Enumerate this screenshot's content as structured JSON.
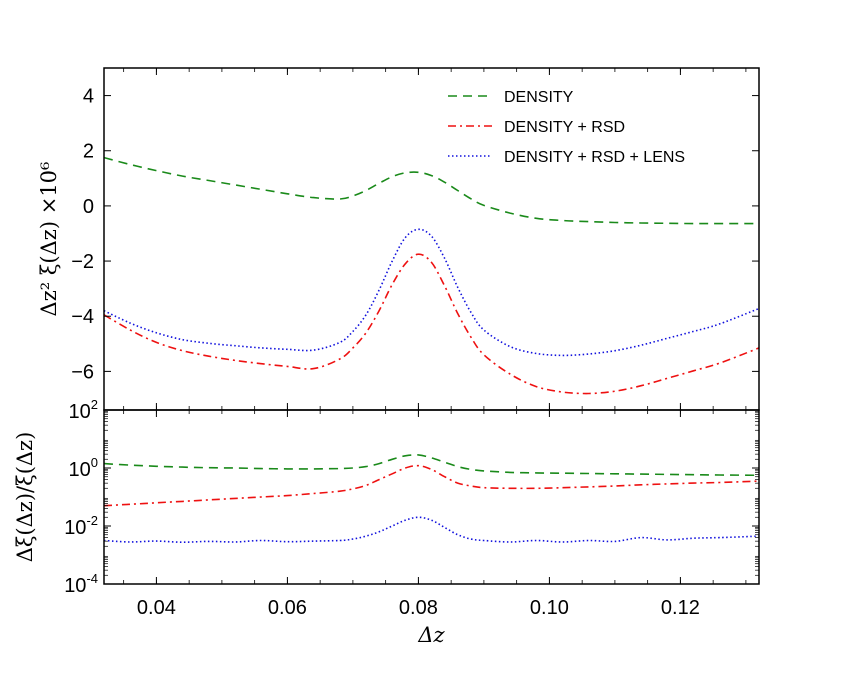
{
  "chart_data": {
    "type": "line",
    "x": [
      0.032,
      0.036,
      0.04,
      0.044,
      0.048,
      0.052,
      0.056,
      0.06,
      0.064,
      0.068,
      0.07,
      0.072,
      0.074,
      0.076,
      0.078,
      0.08,
      0.082,
      0.084,
      0.086,
      0.088,
      0.09,
      0.094,
      0.098,
      0.102,
      0.106,
      0.11,
      0.114,
      0.118,
      0.122,
      0.126,
      0.132
    ],
    "xlabel": "Δz",
    "xlim": [
      0.032,
      0.132
    ],
    "xticks": [
      "0.04",
      "0.06",
      "0.08",
      "0.10",
      "0.12"
    ],
    "xtick_values": [
      0.04,
      0.06,
      0.08,
      0.1,
      0.12
    ],
    "panels": [
      {
        "name": "top",
        "ylabel": "Δz² ξ(Δz) ×10⁶",
        "ylim": [
          -7.4,
          5
        ],
        "yticks": [
          4,
          2,
          0,
          -2,
          -4,
          -6
        ],
        "ytick_labels": [
          "4",
          "2",
          "0",
          "−2",
          "−4",
          "−6"
        ],
        "series": [
          {
            "name": "DENSITY",
            "color": "#1a8a1a",
            "style": "dashed",
            "values": [
              1.75,
              1.5,
              1.28,
              1.08,
              0.92,
              0.76,
              0.6,
              0.44,
              0.3,
              0.25,
              0.36,
              0.56,
              0.82,
              1.06,
              1.2,
              1.22,
              1.1,
              0.86,
              0.56,
              0.26,
              0.02,
              -0.26,
              -0.45,
              -0.53,
              -0.57,
              -0.6,
              -0.62,
              -0.63,
              -0.64,
              -0.64,
              -0.64
            ]
          },
          {
            "name": "DENSITY + RSD",
            "color": "#ee1111",
            "style": "dashdot",
            "values": [
              -3.95,
              -4.5,
              -4.95,
              -5.25,
              -5.45,
              -5.6,
              -5.72,
              -5.82,
              -5.9,
              -5.55,
              -5.15,
              -4.6,
              -3.8,
              -2.85,
              -2.1,
              -1.75,
              -2.05,
              -2.9,
              -3.9,
              -4.75,
              -5.4,
              -6.1,
              -6.55,
              -6.75,
              -6.8,
              -6.72,
              -6.52,
              -6.25,
              -5.98,
              -5.7,
              -5.15
            ]
          },
          {
            "name": "DENSITY + RSD + LENS",
            "color": "#1111dd",
            "style": "dotted",
            "values": [
              -3.8,
              -4.25,
              -4.6,
              -4.85,
              -4.98,
              -5.07,
              -5.15,
              -5.2,
              -5.23,
              -4.95,
              -4.55,
              -3.95,
              -3.05,
              -2.0,
              -1.15,
              -0.85,
              -1.1,
              -1.9,
              -2.95,
              -3.85,
              -4.5,
              -5.1,
              -5.35,
              -5.42,
              -5.37,
              -5.25,
              -5.05,
              -4.8,
              -4.55,
              -4.28,
              -3.72
            ]
          }
        ],
        "legend": "top-right"
      },
      {
        "name": "bottom",
        "ylabel": "Δξ(Δz)/ξ(Δz)",
        "yscale": "log",
        "ylim_exp": [
          -4,
          2
        ],
        "yticks_exp": [
          2,
          0,
          -2,
          -4
        ],
        "ytick_labels": [
          {
            "base": "10",
            "exp": "2"
          },
          {
            "base": "10",
            "exp": "0"
          },
          {
            "base": "10",
            "exp": "-2"
          },
          {
            "base": "10",
            "exp": "-4"
          }
        ],
        "series": [
          {
            "name": "DENSITY",
            "color": "#1a8a1a",
            "style": "dashed",
            "values_log10": [
              0.15,
              0.1,
              0.06,
              0.03,
              0.01,
              0.0,
              -0.02,
              -0.03,
              -0.03,
              -0.02,
              0.0,
              0.05,
              0.15,
              0.3,
              0.42,
              0.45,
              0.35,
              0.2,
              0.05,
              -0.05,
              -0.1,
              -0.15,
              -0.17,
              -0.18,
              -0.19,
              -0.2,
              -0.21,
              -0.22,
              -0.23,
              -0.24,
              -0.25
            ]
          },
          {
            "name": "DENSITY + RSD",
            "color": "#ee1111",
            "style": "dashdot",
            "values_log10": [
              -1.3,
              -1.25,
              -1.2,
              -1.15,
              -1.1,
              -1.05,
              -1.0,
              -0.95,
              -0.88,
              -0.8,
              -0.72,
              -0.6,
              -0.4,
              -0.2,
              0.0,
              0.08,
              -0.05,
              -0.3,
              -0.52,
              -0.62,
              -0.68,
              -0.7,
              -0.7,
              -0.68,
              -0.65,
              -0.62,
              -0.58,
              -0.55,
              -0.52,
              -0.5,
              -0.45
            ]
          },
          {
            "name": "DENSITY + RSD + LENS",
            "color": "#1111dd",
            "style": "dotted",
            "values_log10": [
              -2.5,
              -2.55,
              -2.52,
              -2.56,
              -2.53,
              -2.55,
              -2.5,
              -2.54,
              -2.52,
              -2.5,
              -2.45,
              -2.35,
              -2.2,
              -2.0,
              -1.8,
              -1.7,
              -1.8,
              -2.05,
              -2.3,
              -2.45,
              -2.5,
              -2.55,
              -2.5,
              -2.55,
              -2.5,
              -2.53,
              -2.4,
              -2.48,
              -2.42,
              -2.4,
              -2.35
            ]
          }
        ]
      }
    ]
  }
}
